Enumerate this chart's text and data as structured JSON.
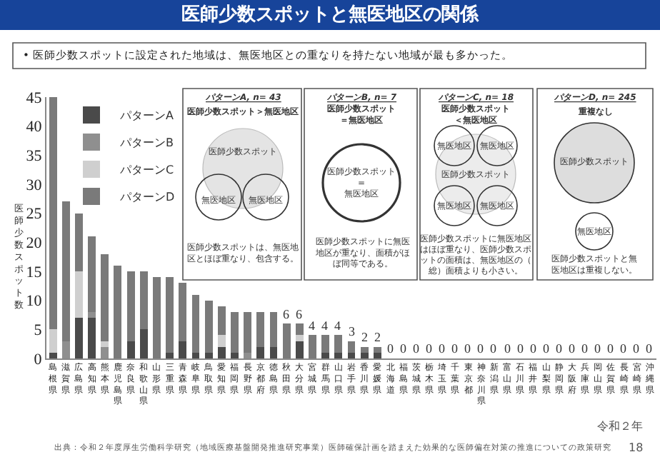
{
  "chart_data": {
    "type": "bar",
    "title": "医師少数スポットと無医地区の関係",
    "subtitle": "• 医師少数スポットに設定された地域は、無医地区との重なりを持たない地域が最も多かった。",
    "ylabel": "医師少数スポット数",
    "categories": [
      "島根県",
      "滋賀県",
      "広島県",
      "高知県",
      "熊本県",
      "鹿児島県",
      "奈良県",
      "和歌山県",
      "山形県",
      "三重県",
      "青森県",
      "岐阜県",
      "鳥取県",
      "愛知県",
      "福岡県",
      "長野県",
      "京都府",
      "徳島県",
      "秋田県",
      "大分県",
      "宮城県",
      "群馬県",
      "山口県",
      "岩手県",
      "香川県",
      "愛媛県",
      "北海道",
      "福島県",
      "茨城県",
      "栃木県",
      "埼玉県",
      "千葉県",
      "東京都",
      "神奈川県",
      "新潟県",
      "富山県",
      "石川県",
      "福井県",
      "山梨県",
      "静岡県",
      "大阪府",
      "兵庫県",
      "岡山県",
      "佐賀県",
      "長崎県",
      "宮崎県",
      "沖縄県"
    ],
    "stacked": true,
    "series": [
      {
        "name": "パターンA",
        "color": "#4a4a4a",
        "values": [
          1,
          0,
          7,
          7,
          0,
          0,
          3,
          5,
          0,
          1,
          3,
          1,
          1,
          2,
          1,
          0,
          2,
          2,
          0,
          3,
          0,
          1,
          1,
          1,
          1,
          1,
          0,
          0,
          0,
          0,
          0,
          0,
          0,
          0,
          0,
          0,
          0,
          0,
          0,
          0,
          0,
          0,
          0,
          0,
          0,
          0,
          0
        ]
      },
      {
        "name": "パターンB",
        "color": "#8f8f8f",
        "values": [
          0,
          3,
          0,
          1,
          2,
          0,
          0,
          0,
          0,
          0,
          0,
          0,
          0,
          0,
          0,
          1,
          0,
          0,
          0,
          0,
          0,
          0,
          0,
          0,
          0,
          0,
          0,
          0,
          0,
          0,
          0,
          0,
          0,
          0,
          0,
          0,
          0,
          0,
          0,
          0,
          0,
          0,
          0,
          0,
          0,
          0,
          0
        ]
      },
      {
        "name": "パターンC",
        "color": "#cfcfcf",
        "values": [
          4,
          0,
          8,
          0,
          1,
          0,
          0,
          0,
          0,
          0,
          0,
          0,
          0,
          2,
          0,
          0,
          0,
          0,
          0,
          1,
          0,
          0,
          0,
          0,
          0,
          0,
          0,
          0,
          0,
          0,
          0,
          0,
          0,
          0,
          0,
          0,
          0,
          0,
          0,
          0,
          0,
          0,
          0,
          0,
          0,
          0,
          0
        ]
      },
      {
        "name": "パターンD",
        "color": "#7a7a7a",
        "values": [
          40,
          24,
          10,
          13,
          15,
          16,
          12,
          10,
          14,
          13,
          10,
          10,
          9,
          5,
          7,
          7,
          6,
          6,
          6,
          2,
          4,
          3,
          3,
          2,
          1,
          1,
          0,
          0,
          0,
          0,
          0,
          0,
          0,
          0,
          0,
          0,
          0,
          0,
          0,
          0,
          0,
          0,
          0,
          0,
          0,
          0,
          0
        ]
      }
    ],
    "totals": [
      null,
      null,
      null,
      null,
      null,
      null,
      null,
      null,
      null,
      null,
      null,
      null,
      null,
      null,
      null,
      null,
      null,
      null,
      "6",
      "6",
      "4",
      "4",
      "4",
      "3",
      "2",
      "2",
      "0",
      "0",
      "0",
      "0",
      "0",
      "0",
      "0",
      "0",
      "0",
      "0",
      "0",
      "0",
      "0",
      "0",
      "0",
      "0",
      "0",
      "0",
      "0",
      "0",
      "0"
    ],
    "ylim": [
      0,
      45
    ],
    "yticks": [
      0,
      5,
      10,
      15,
      20,
      25,
      30,
      35,
      40,
      45
    ],
    "legend": "top left",
    "annotations": [
      "パターンA, n= 43",
      "医師少数スポット＞無医地区",
      "医師少数スポット",
      "無医地区",
      "無医地区",
      "医師少数スポットは、無医地区とほぼ重なり、包含する。",
      "パターンB, n= 7",
      "医師少数スポット＝無医地区",
      "医師少数スポット\n=\n無医地区",
      "医師少数スポットに無医地区が重なり、面積がほぼ同等である。",
      "パターンC, n= 18",
      "医師少数スポット＜無医地区",
      "無医地区",
      "無医地区",
      "無医地区",
      "無医地区",
      "医師少数スポット",
      "医師少数スポットに無医地区はほぼ重なり、医師少数スポットの面積は、無医地区の（総）面積よりも小さい。",
      "パターンD, n= 245",
      "重複なし",
      "医師少数スポット",
      "無医地区",
      "医師少数スポットと無医地区は重複しない。",
      "令和２年",
      "出典：令和２年度厚生労働科学研究（地域医療基盤開発推進研究事業）医師確保計画を踏まえた効果的な医師偏在対策の推進についての政策研究",
      "18"
    ]
  }
}
